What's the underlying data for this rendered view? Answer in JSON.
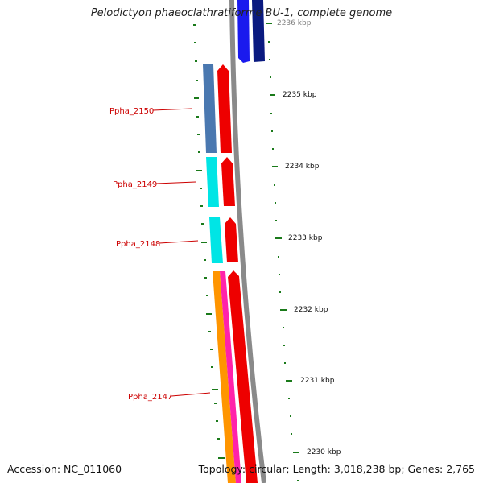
{
  "title": "Pelodictyon phaeoclathratiforme BU-1, complete genome",
  "accession_text": "Accession: NC_011060",
  "summary_text": "Topology: circular; Length: 3,018,238 bp; Genes: 2,765",
  "ticks": [
    {
      "label": "2236 kbp"
    },
    {
      "label": "2235 kbp"
    },
    {
      "label": "2234 kbp"
    },
    {
      "label": "2233 kbp"
    },
    {
      "label": "2232 kbp"
    },
    {
      "label": "2231 kbp"
    },
    {
      "label": "2230 kbp"
    }
  ],
  "genes": [
    {
      "name": "Ppha_2150"
    },
    {
      "name": "Ppha_2149"
    },
    {
      "name": "Ppha_2148"
    },
    {
      "name": "Ppha_2147"
    }
  ],
  "colors": {
    "backbone": "#8a8a8a",
    "tick": "#1a7a1a",
    "gene_label": "#cc0000",
    "feature_red": "#ee0000",
    "feature_steelblue": "#4a78b0",
    "feature_cyan": "#00e5e5",
    "feature_orange": "#ff9500",
    "feature_magenta": "#ff22aa",
    "feature_blue": "#1a1aee",
    "feature_navy": "#0a1a80"
  }
}
